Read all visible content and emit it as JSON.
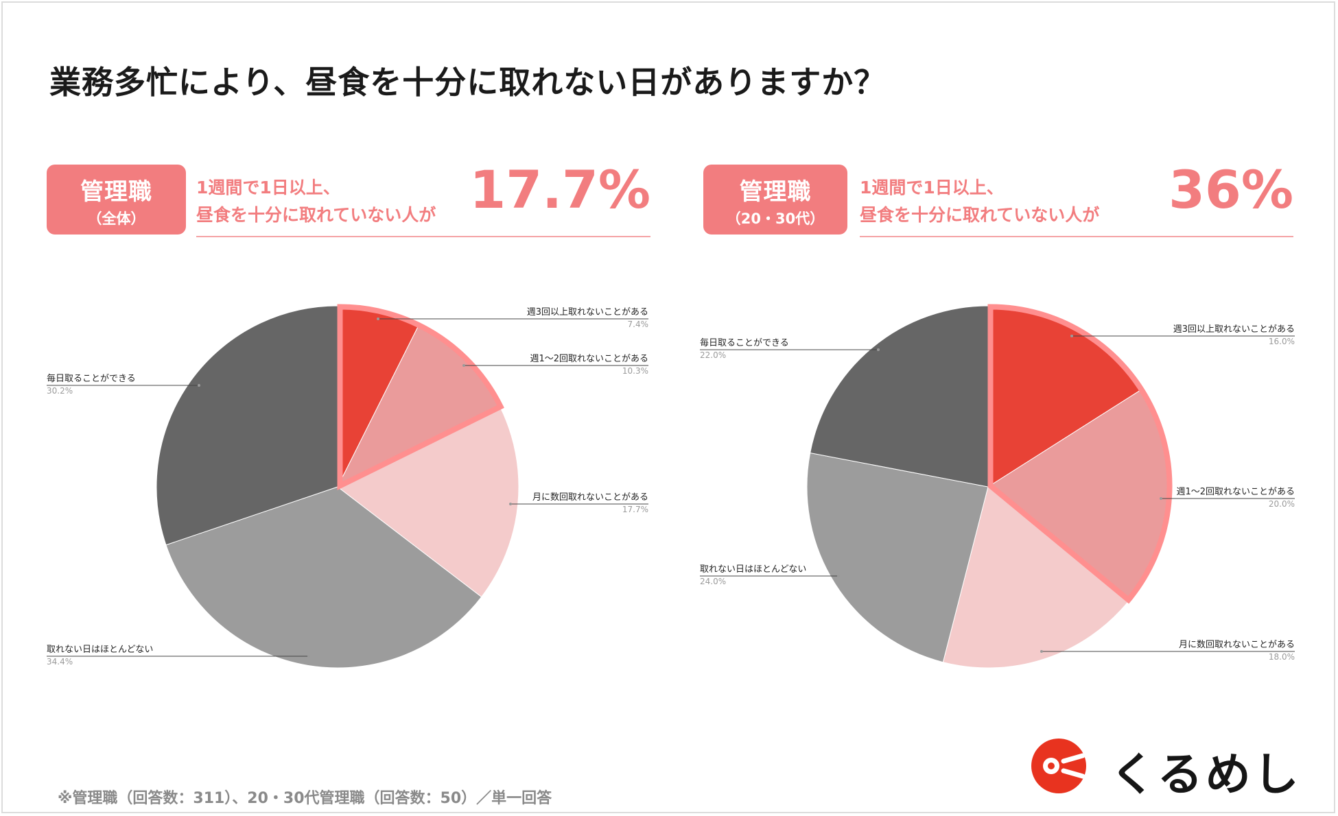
{
  "title": "業務多忙により、昼食を十分に取れない日がありますか？",
  "panels": [
    {
      "badge_main": "管理職",
      "badge_sub": "（全体）",
      "summary_line1": "1週間で1日以上、",
      "summary_line2": "昼食を十分に取れていない人が",
      "highlight": "17.7%"
    },
    {
      "badge_main": "管理職",
      "badge_sub": "（20・30代）",
      "summary_line1": "1週間で1日以上、",
      "summary_line2": "昼食を十分に取れていない人が",
      "highlight": "36%"
    }
  ],
  "chart_data": [
    {
      "type": "pie",
      "title": "管理職（全体）",
      "categories": [
        "週3回以上取れないことがある",
        "週1〜2回取れないことがある",
        "月に数回取れないことがある",
        "取れない日はほとんどない",
        "毎日取ることができる"
      ],
      "values": [
        7.4,
        10.3,
        17.7,
        34.4,
        30.2
      ],
      "value_labels": [
        "7.4%",
        "10.3%",
        "17.7%",
        "34.4%",
        "30.2%"
      ],
      "colors": [
        "#e84236",
        "#ea9b9b",
        "#f4cbcb",
        "#9c9c9c",
        "#666666"
      ],
      "highlighted_categories": [
        "週3回以上取れないことがある",
        "週1〜2回取れないことがある"
      ]
    },
    {
      "type": "pie",
      "title": "管理職（20・30代）",
      "categories": [
        "週3回以上取れないことがある",
        "週1〜2回取れないことがある",
        "月に数回取れないことがある",
        "取れない日はほとんどない",
        "毎日取ることができる"
      ],
      "values": [
        16.0,
        20.0,
        18.0,
        24.0,
        22.0
      ],
      "value_labels": [
        "16.0%",
        "20.0%",
        "18.0%",
        "24.0%",
        "22.0%"
      ],
      "colors": [
        "#e84236",
        "#ea9b9b",
        "#f4cbcb",
        "#9c9c9c",
        "#666666"
      ],
      "highlighted_categories": [
        "週3回以上取れないことがある",
        "週1〜2回取れないことがある"
      ]
    }
  ],
  "footnote": "※管理職（回答数：311）、20・30代管理職（回答数：50）／単一回答",
  "logo": {
    "text": "くるめし",
    "accent": "#e8331f"
  },
  "colors": {
    "accent": "#f27d7f",
    "highlight_outline": "#ff8f8f"
  }
}
